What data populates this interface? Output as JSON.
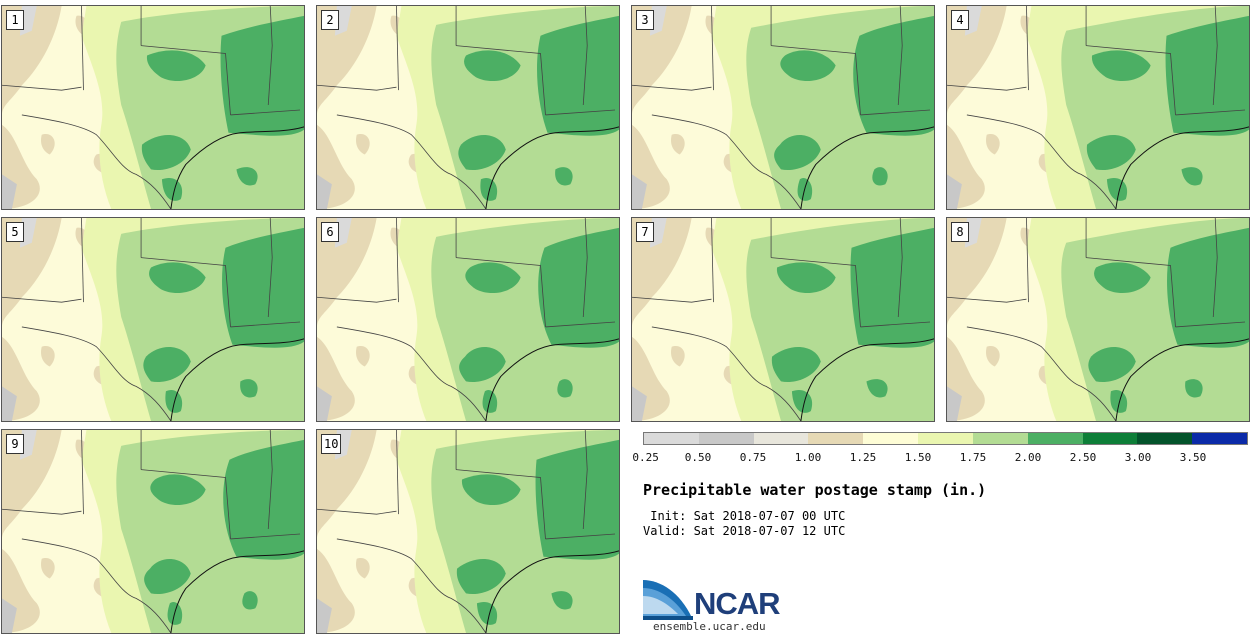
{
  "panels": [
    {
      "label": "1"
    },
    {
      "label": "2"
    },
    {
      "label": "3"
    },
    {
      "label": "4"
    },
    {
      "label": "5"
    },
    {
      "label": "6"
    },
    {
      "label": "7"
    },
    {
      "label": "8"
    },
    {
      "label": "9"
    },
    {
      "label": "10"
    }
  ],
  "colorbar": {
    "colors": [
      "#dadada",
      "#c8c8c8",
      "#e8e6dc",
      "#e6d9b5",
      "#fefdd6",
      "#eaf6b0",
      "#b3dc94",
      "#4caf64",
      "#0d7e38",
      "#03532b",
      "#0b2aa8"
    ],
    "ticks": [
      "0.25",
      "0.50",
      "0.75",
      "1.00",
      "1.25",
      "1.50",
      "1.75",
      "2.00",
      "2.50",
      "3.00",
      "3.50"
    ]
  },
  "title": "Precipitable water postage stamp (in.)",
  "init_text": " Init: Sat 2018-07-07 00 UTC",
  "valid_text": "Valid: Sat 2018-07-07 12 UTC",
  "logo": {
    "text": "NCAR"
  },
  "site": "ensemble.ucar.edu"
}
